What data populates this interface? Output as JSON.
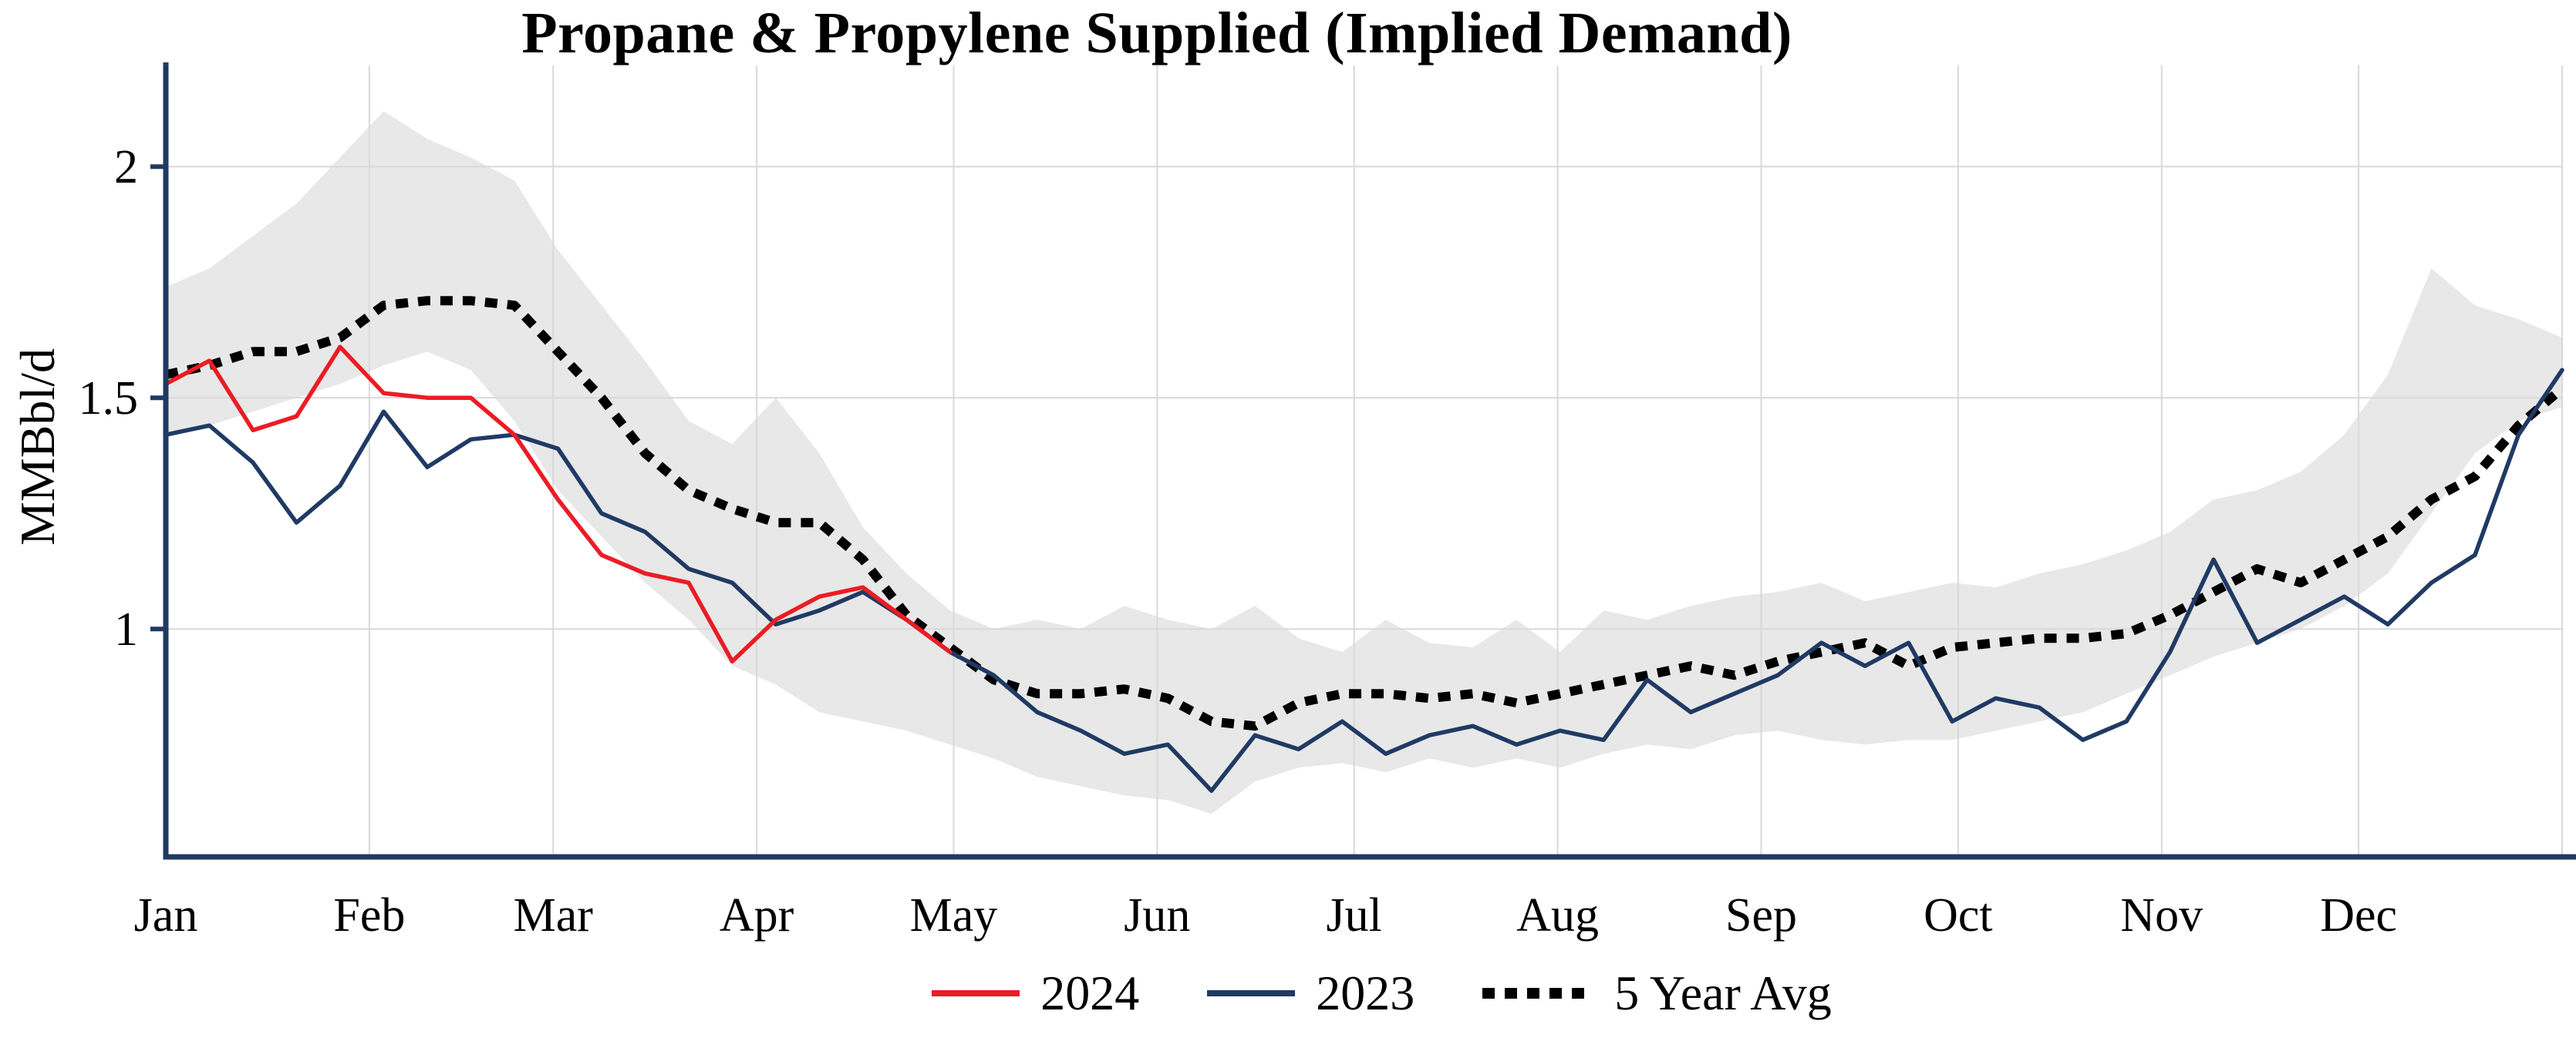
{
  "page": {
    "background": "#ffffff"
  },
  "chart_data": {
    "type": "line",
    "title": "Propane & Propylene Supplied (Implied Demand)",
    "ylabel": "MMBbl/d",
    "units": "MMBbl/d",
    "x_mode": "weekly-over-one-year",
    "x_months": [
      "Jan",
      "Feb",
      "Mar",
      "Apr",
      "May",
      "Jun",
      "Jul",
      "Aug",
      "Sep",
      "Oct",
      "Nov",
      "Dec"
    ],
    "ylim": [
      0.5,
      2.2
    ],
    "yticks": [
      {
        "value": 2,
        "label": "2"
      },
      {
        "value": 1.5,
        "label": "1.5"
      },
      {
        "value": 1,
        "label": "1"
      }
    ],
    "grid": true,
    "legend_position": "bottom",
    "axis_color": "#1f3a64",
    "grid_color": "#d9d9d9",
    "band": {
      "name": "5-year range",
      "fill": "#e8e8e8",
      "upper": [
        1.74,
        1.78,
        1.85,
        1.92,
        2.02,
        2.12,
        2.06,
        2.02,
        1.97,
        1.82,
        1.7,
        1.58,
        1.45,
        1.4,
        1.5,
        1.38,
        1.22,
        1.12,
        1.04,
        1.0,
        1.02,
        1.0,
        1.05,
        1.02,
        1.0,
        1.05,
        0.98,
        0.95,
        1.02,
        0.97,
        0.96,
        1.02,
        0.95,
        1.04,
        1.02,
        1.05,
        1.07,
        1.08,
        1.1,
        1.06,
        1.08,
        1.1,
        1.09,
        1.12,
        1.14,
        1.17,
        1.21,
        1.28,
        1.3,
        1.34,
        1.42,
        1.55,
        1.78,
        1.7,
        1.67,
        1.63
      ],
      "lower": [
        1.42,
        1.44,
        1.47,
        1.5,
        1.53,
        1.57,
        1.6,
        1.56,
        1.45,
        1.3,
        1.2,
        1.1,
        1.02,
        0.92,
        0.88,
        0.82,
        0.8,
        0.78,
        0.75,
        0.72,
        0.68,
        0.66,
        0.64,
        0.63,
        0.6,
        0.67,
        0.7,
        0.71,
        0.69,
        0.72,
        0.7,
        0.72,
        0.7,
        0.73,
        0.75,
        0.74,
        0.77,
        0.78,
        0.76,
        0.75,
        0.76,
        0.76,
        0.78,
        0.8,
        0.82,
        0.86,
        0.9,
        0.94,
        0.97,
        1.0,
        1.05,
        1.12,
        1.25,
        1.38,
        1.45,
        1.48
      ]
    },
    "series": [
      {
        "name": "2024",
        "color": "#ec1c24",
        "style": "solid",
        "values": [
          1.53,
          1.58,
          1.43,
          1.46,
          1.61,
          1.51,
          1.5,
          1.5,
          1.42,
          1.28,
          1.16,
          1.12,
          1.1,
          0.93,
          1.02,
          1.07,
          1.09,
          1.02,
          0.95
        ]
      },
      {
        "name": "2023",
        "color": "#1f3a64",
        "style": "solid",
        "values": [
          1.42,
          1.44,
          1.36,
          1.23,
          1.31,
          1.47,
          1.35,
          1.41,
          1.42,
          1.39,
          1.25,
          1.21,
          1.13,
          1.1,
          1.01,
          1.04,
          1.08,
          1.02,
          0.95,
          0.9,
          0.82,
          0.78,
          0.73,
          0.75,
          0.65,
          0.77,
          0.74,
          0.8,
          0.73,
          0.77,
          0.79,
          0.75,
          0.78,
          0.76,
          0.89,
          0.82,
          0.86,
          0.9,
          0.97,
          0.92,
          0.97,
          0.8,
          0.85,
          0.83,
          0.76,
          0.8,
          0.95,
          1.15,
          0.97,
          1.02,
          1.07,
          1.01,
          1.1,
          1.16,
          1.42,
          1.56
        ]
      },
      {
        "name": "5 Year Avg",
        "color": "#000000",
        "style": "dotted",
        "values": [
          1.55,
          1.57,
          1.6,
          1.6,
          1.63,
          1.7,
          1.71,
          1.71,
          1.7,
          1.6,
          1.5,
          1.38,
          1.3,
          1.26,
          1.23,
          1.23,
          1.15,
          1.03,
          0.96,
          0.89,
          0.86,
          0.86,
          0.87,
          0.85,
          0.8,
          0.79,
          0.84,
          0.86,
          0.86,
          0.85,
          0.86,
          0.84,
          0.86,
          0.88,
          0.9,
          0.92,
          0.9,
          0.93,
          0.95,
          0.97,
          0.92,
          0.96,
          0.97,
          0.98,
          0.98,
          0.99,
          1.03,
          1.08,
          1.13,
          1.1,
          1.15,
          1.2,
          1.28,
          1.33,
          1.44,
          1.52
        ]
      }
    ]
  }
}
